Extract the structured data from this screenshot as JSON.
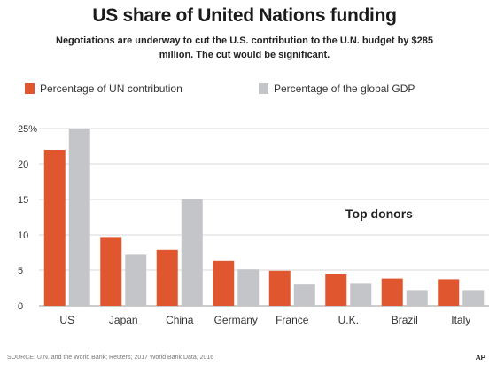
{
  "title": "US share of United Nations funding",
  "subtitle": "Negotiations are underway to cut the U.S. contribution to the U.N. budget by $285 million. The cut would be significant.",
  "legend": [
    {
      "label": "Percentage of UN contribution",
      "color": "#e0562e"
    },
    {
      "label": "Percentage of the global GDP",
      "color": "#c4c5c8"
    }
  ],
  "annotation": "Top donors",
  "source": "SOURCE: U.N. and the World Bank; Reuters; 2017 World Bank Data, 2016",
  "credit": "AP",
  "chart_data": {
    "type": "bar",
    "title": "US share of United Nations funding",
    "categories": [
      "US",
      "Japan",
      "China",
      "Germany",
      "France",
      "U.K.",
      "Brazil",
      "Italy"
    ],
    "series": [
      {
        "name": "Percentage of UN contribution",
        "values": [
          22,
          9.7,
          7.9,
          6.4,
          4.9,
          4.5,
          3.8,
          3.7
        ],
        "color": "#e0562e"
      },
      {
        "name": "Percentage of the global GDP",
        "values": [
          25,
          7.2,
          15,
          5.1,
          3.1,
          3.2,
          2.2,
          2.2
        ],
        "color": "#c4c5c8"
      }
    ],
    "yticks": [
      "0",
      "5",
      "10",
      "15",
      "20",
      "25%"
    ],
    "ylim": [
      0,
      25
    ],
    "grid": true,
    "xlabel": "",
    "ylabel": ""
  }
}
